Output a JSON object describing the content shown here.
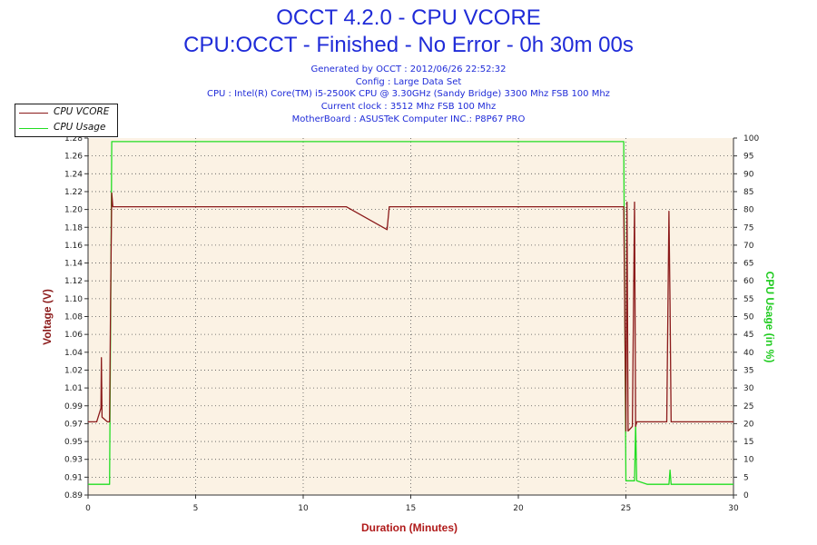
{
  "header": {
    "title": "OCCT 4.2.0 - CPU VCORE",
    "subtitle": "CPU:OCCT - Finished - No Error - 0h 30m 00s"
  },
  "info": {
    "generated": "Generated by OCCT : 2012/06/26 22:52:32",
    "config": "Config : Large Data Set",
    "cpu": "CPU : Intel(R) Core(TM) i5-2500K CPU @ 3.30GHz (Sandy Bridge) 3300 Mhz FSB 100 Mhz",
    "clock": "Current clock : 3512 Mhz FSB 100 Mhz",
    "motherboard": "MotherBoard : ASUSTeK Computer INC.: P8P67 PRO"
  },
  "colors": {
    "vcore": "#8b1a1a",
    "usage": "#22dd22",
    "plot_bg": "#fbf2e4",
    "title": "#1f2bd8",
    "axis_left_label": "#8b1a1a",
    "axis_right_label": "#22cc22",
    "axis_bottom_label": "#b01a1a"
  },
  "chart_data": {
    "type": "line",
    "xlabel": "Duration (Minutes)",
    "ylabel_left": "Voltage (V)",
    "ylabel_right": "CPU Usage (in %)",
    "xlim": [
      0,
      30
    ],
    "ylim_left": [
      0.89,
      1.28
    ],
    "ylim_right": [
      0,
      100
    ],
    "x_ticks": [
      0,
      5,
      10,
      15,
      20,
      25,
      30
    ],
    "y_left_ticks": [
      "0.89",
      "0.91",
      "0.93",
      "0.95",
      "0.97",
      "0.99",
      "1.01",
      "1.02",
      "1.04",
      "1.06",
      "1.08",
      "1.10",
      "1.12",
      "1.14",
      "1.16",
      "1.18",
      "1.20",
      "1.22",
      "1.24",
      "1.26",
      "1.28"
    ],
    "y_right_ticks": [
      0,
      5,
      10,
      15,
      20,
      25,
      30,
      35,
      40,
      45,
      50,
      55,
      60,
      65,
      70,
      75,
      80,
      85,
      90,
      95,
      100
    ],
    "grid": true,
    "legend_position": "top-left",
    "series": [
      {
        "name": "CPU VCORE",
        "axis": "left",
        "x": [
          0,
          0.4,
          0.6,
          0.62,
          0.65,
          0.9,
          1.0,
          1.05,
          1.1,
          1.15,
          1.2,
          3,
          6,
          9,
          12,
          13.9,
          14,
          15,
          18,
          21,
          24,
          24.9,
          25.0,
          25.05,
          25.1,
          25.3,
          25.4,
          25.45,
          25.5,
          25.6,
          26,
          26.5,
          26.9,
          27.0,
          27.05,
          27.1,
          27.5,
          28,
          29,
          30
        ],
        "y": [
          0.97,
          0.97,
          0.985,
          1.04,
          0.975,
          0.97,
          0.97,
          1.11,
          1.22,
          1.205,
          1.205,
          1.205,
          1.205,
          1.205,
          1.205,
          1.18,
          1.205,
          1.205,
          1.205,
          1.205,
          1.205,
          1.205,
          0.96,
          1.21,
          0.96,
          0.965,
          1.21,
          0.965,
          0.97,
          0.97,
          0.97,
          0.97,
          0.97,
          1.2,
          1.1,
          0.97,
          0.97,
          0.97,
          0.97,
          0.97
        ]
      },
      {
        "name": "CPU Usage",
        "axis": "right",
        "x": [
          0,
          1.0,
          1.05,
          1.1,
          3,
          6,
          9,
          12,
          15,
          18,
          21,
          24,
          24.9,
          24.95,
          25.0,
          25.4,
          25.45,
          25.5,
          26,
          27,
          27.05,
          27.1,
          28,
          29,
          30
        ],
        "y": [
          3,
          3,
          50,
          99,
          99,
          99,
          99,
          99,
          99,
          99,
          99,
          99,
          99,
          50,
          4,
          4,
          20,
          4,
          3,
          3,
          7,
          3,
          3,
          3,
          3
        ]
      }
    ]
  }
}
